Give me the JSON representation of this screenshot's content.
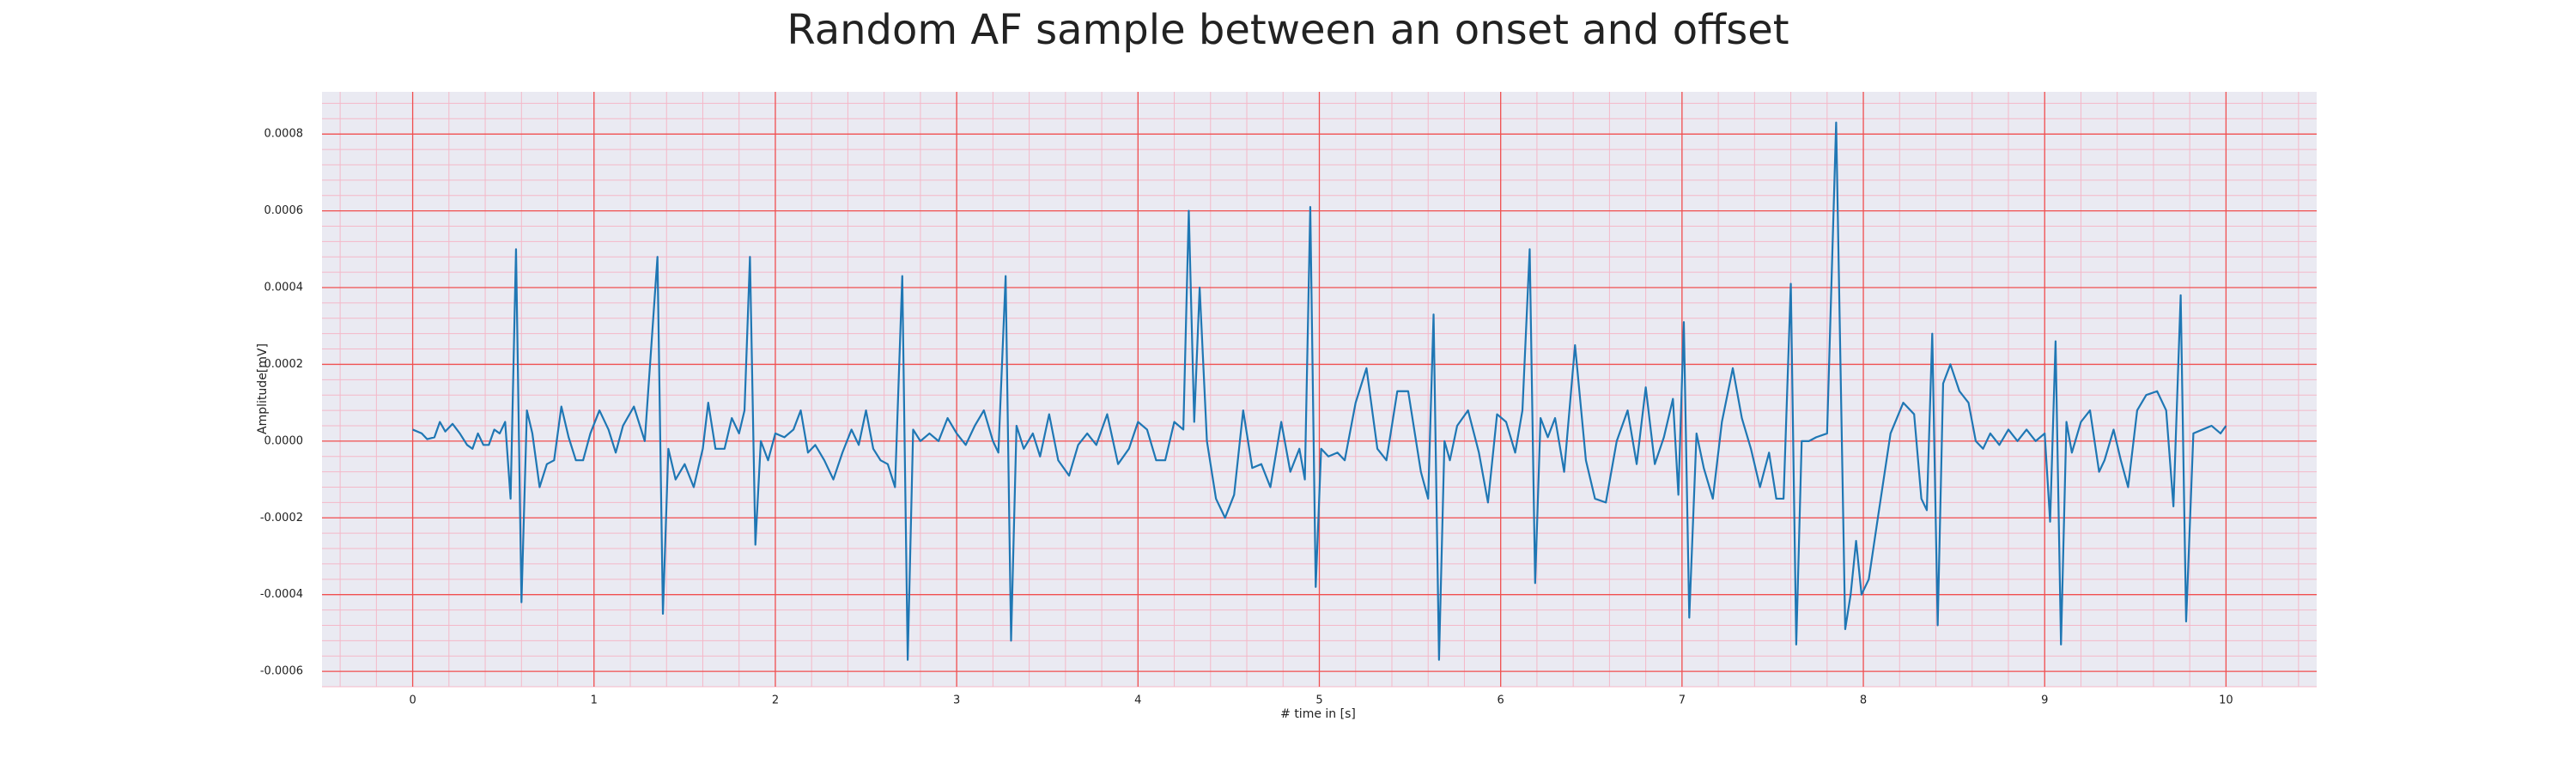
{
  "chart_data": {
    "type": "line",
    "title": "Random AF sample between an onset and offset",
    "xlabel": "# time in [s]",
    "ylabel": "Amplitude[mV]",
    "xlim": [
      -0.5,
      10.5
    ],
    "ylim": [
      -0.00064,
      0.00091
    ],
    "xticks": [
      0,
      1,
      2,
      3,
      4,
      5,
      6,
      7,
      8,
      9,
      10
    ],
    "yticks": [
      -0.0006,
      -0.0004,
      -0.0002,
      {
        "value": 0,
        "label": "0.0000"
      },
      0.0002,
      0.0004,
      0.0006,
      0.0008
    ],
    "grid": true,
    "minor_grid": true,
    "series": [
      {
        "color": "#1f77b4",
        "x": [
          0,
          0.05,
          0.08,
          0.12,
          0.15,
          0.18,
          0.22,
          0.26,
          0.3,
          0.33,
          0.36,
          0.39,
          0.42,
          0.45,
          0.48,
          0.51,
          0.54,
          0.57,
          0.6,
          0.63,
          0.66,
          0.7,
          0.74,
          0.78,
          0.82,
          0.86,
          0.9,
          0.94,
          0.98,
          1.03,
          1.08,
          1.12,
          1.16,
          1.22,
          1.28,
          1.35,
          1.38,
          1.41,
          1.45,
          1.5,
          1.55,
          1.6,
          1.63,
          1.67,
          1.72,
          1.76,
          1.8,
          1.83,
          1.86,
          1.89,
          1.92,
          1.96,
          2.0,
          2.05,
          2.1,
          2.14,
          2.18,
          2.22,
          2.27,
          2.32,
          2.37,
          2.42,
          2.46,
          2.5,
          2.54,
          2.58,
          2.62,
          2.66,
          2.7,
          2.73,
          2.76,
          2.8,
          2.85,
          2.9,
          2.95,
          3.0,
          3.05,
          3.1,
          3.15,
          3.2,
          3.23,
          3.27,
          3.3,
          3.33,
          3.37,
          3.42,
          3.46,
          3.51,
          3.56,
          3.62,
          3.67,
          3.72,
          3.77,
          3.83,
          3.89,
          3.95,
          4.0,
          4.05,
          4.1,
          4.15,
          4.2,
          4.25,
          4.28,
          4.31,
          4.34,
          4.38,
          4.43,
          4.48,
          4.53,
          4.58,
          4.63,
          4.68,
          4.73,
          4.79,
          4.84,
          4.89,
          4.92,
          4.95,
          4.98,
          5.01,
          5.05,
          5.1,
          5.14,
          5.2,
          5.26,
          5.32,
          5.37,
          5.43,
          5.49,
          5.56,
          5.6,
          5.63,
          5.66,
          5.69,
          5.72,
          5.76,
          5.82,
          5.88,
          5.93,
          5.98,
          6.03,
          6.08,
          6.12,
          6.16,
          6.19,
          6.22,
          6.26,
          6.3,
          6.35,
          6.41,
          6.47,
          6.52,
          6.58,
          6.64,
          6.7,
          6.75,
          6.8,
          6.85,
          6.9,
          6.95,
          6.98,
          7.01,
          7.04,
          7.08,
          7.12,
          7.17,
          7.22,
          7.28,
          7.33,
          7.38,
          7.43,
          7.48,
          7.52,
          7.56,
          7.6,
          7.63,
          7.66,
          7.7,
          7.74,
          7.8,
          7.85,
          7.9,
          7.93,
          7.96,
          7.99,
          8.03,
          8.08,
          8.15,
          8.22,
          8.28,
          8.32,
          8.35,
          8.38,
          8.41,
          8.44,
          8.48,
          8.53,
          8.58,
          8.62,
          8.66,
          8.7,
          8.75,
          8.8,
          8.85,
          8.9,
          8.95,
          9.0,
          9.03,
          9.06,
          9.09,
          9.12,
          9.15,
          9.2,
          9.25,
          9.3,
          9.33,
          9.38,
          9.42,
          9.46,
          9.51,
          9.56,
          9.62,
          9.67,
          9.71,
          9.75,
          9.78,
          9.82,
          9.87,
          9.92,
          9.97,
          10.0
        ],
        "values": [
          3e-05,
          2e-05,
          5e-06,
          1e-05,
          5e-05,
          2.5e-05,
          4.5e-05,
          2e-05,
          -1e-05,
          -2e-05,
          2e-05,
          -1e-05,
          -1e-05,
          3e-05,
          2e-05,
          5e-05,
          -0.00015,
          0.0005,
          -0.00042,
          8e-05,
          2e-05,
          -0.00012,
          -6e-05,
          -5e-05,
          9e-05,
          1e-05,
          -5e-05,
          -5e-05,
          2e-05,
          8e-05,
          3e-05,
          -3e-05,
          4e-05,
          9e-05,
          0.0,
          0.00048,
          -0.00045,
          -2e-05,
          -0.0001,
          -6e-05,
          -0.00012,
          -2e-05,
          0.0001,
          -2e-05,
          -2e-05,
          6e-05,
          2e-05,
          8e-05,
          0.00048,
          -0.00027,
          0.0,
          -5e-05,
          2e-05,
          1e-05,
          3e-05,
          8e-05,
          -3e-05,
          -1e-05,
          -5e-05,
          -0.0001,
          -3e-05,
          3e-05,
          -1e-05,
          8e-05,
          -2e-05,
          -5e-05,
          -6e-05,
          -0.00012,
          0.00043,
          -0.00057,
          3e-05,
          0.0,
          2e-05,
          0.0,
          6e-05,
          2e-05,
          -1e-05,
          4e-05,
          8e-05,
          0.0,
          -3e-05,
          0.00043,
          -0.00052,
          4e-05,
          -2e-05,
          2e-05,
          -4e-05,
          7e-05,
          -5e-05,
          -9e-05,
          -1e-05,
          2e-05,
          -1e-05,
          7e-05,
          -6e-05,
          -2e-05,
          5e-05,
          3e-05,
          -5e-05,
          -5e-05,
          5e-05,
          3e-05,
          0.0006,
          5e-05,
          0.0004,
          0.0,
          -0.00015,
          -0.0002,
          -0.00014,
          8e-05,
          -7e-05,
          -6e-05,
          -0.00012,
          5e-05,
          -8e-05,
          -2e-05,
          -0.0001,
          0.00061,
          -0.00038,
          -2e-05,
          -4e-05,
          -3e-05,
          -5e-05,
          0.0001,
          0.00019,
          -2e-05,
          -5e-05,
          0.00013,
          0.00013,
          -8e-05,
          -0.00015,
          0.00033,
          -0.00057,
          0.0,
          -5e-05,
          4e-05,
          8e-05,
          -3e-05,
          -0.00016,
          7e-05,
          5e-05,
          -3e-05,
          8e-05,
          0.0005,
          -0.00037,
          6e-05,
          1e-05,
          6e-05,
          -8e-05,
          0.00025,
          -5e-05,
          -0.00015,
          -0.00016,
          0.0,
          8e-05,
          -6e-05,
          0.00014,
          -6e-05,
          1e-05,
          0.00011,
          -0.00014,
          0.00031,
          -0.00046,
          2e-05,
          -7e-05,
          -0.00015,
          5e-05,
          0.00019,
          6e-05,
          -2e-05,
          -0.00012,
          -3e-05,
          -0.00015,
          -0.00015,
          0.00041,
          -0.00053,
          0.0,
          0.0,
          1e-05,
          2e-05,
          0.00083,
          -0.00049,
          -0.0004,
          -0.00026,
          -0.0004,
          -0.00036,
          -0.0002,
          2e-05,
          0.0001,
          7e-05,
          -0.00015,
          -0.00018,
          0.00028,
          -0.00048,
          0.00015,
          0.0002,
          0.00013,
          0.0001,
          0.0,
          -2e-05,
          2e-05,
          -1e-05,
          3e-05,
          0.0,
          3e-05,
          0.0,
          2e-05,
          -0.00021,
          0.00026,
          -0.00053,
          5e-05,
          -3e-05,
          5e-05,
          8e-05,
          -8e-05,
          -5e-05,
          3e-05,
          -5e-05,
          -0.00012,
          8e-05,
          0.00012,
          0.00013,
          8e-05,
          -0.00017,
          0.00038,
          -0.00047,
          2e-05,
          3e-05,
          4e-05,
          2e-05,
          4e-05
        ]
      }
    ]
  }
}
